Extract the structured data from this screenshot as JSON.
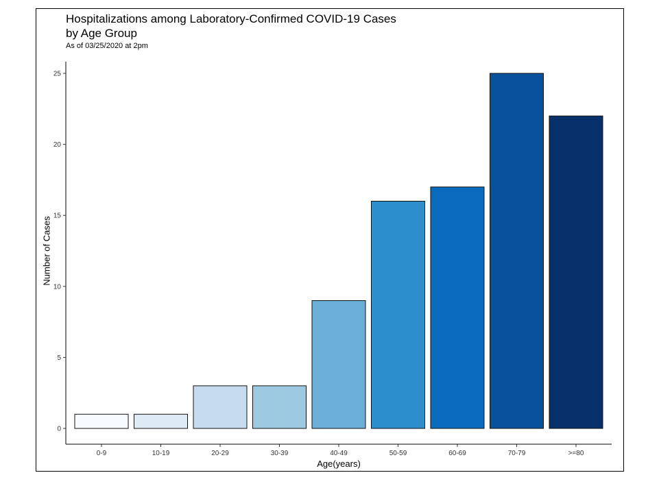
{
  "chart_data": {
    "type": "bar",
    "title": "Hospitalizations among Laboratory-Confirmed COVID-19 Cases\n by Age Group",
    "subtitle": "As of 03/25/2020 at 2pm",
    "xlabel": "Age(years)",
    "ylabel": "Number of Cases",
    "categories": [
      "0-9",
      "10-19",
      "20-29",
      "30-39",
      "40-49",
      "50-59",
      "60-69",
      "70-79",
      ">=80"
    ],
    "values": [
      1,
      1,
      3,
      3,
      9,
      16,
      17,
      25,
      22
    ],
    "colors": [
      "#f7fbff",
      "#deebf7",
      "#c6dbef",
      "#9ecae1",
      "#6baed6",
      "#2c8fcc",
      "#0a6bbc",
      "#08519c",
      "#08306b"
    ],
    "ylim": [
      0,
      25
    ],
    "yticks": [
      0,
      5,
      10,
      15,
      20,
      25
    ],
    "grid": false,
    "legend": "none"
  }
}
